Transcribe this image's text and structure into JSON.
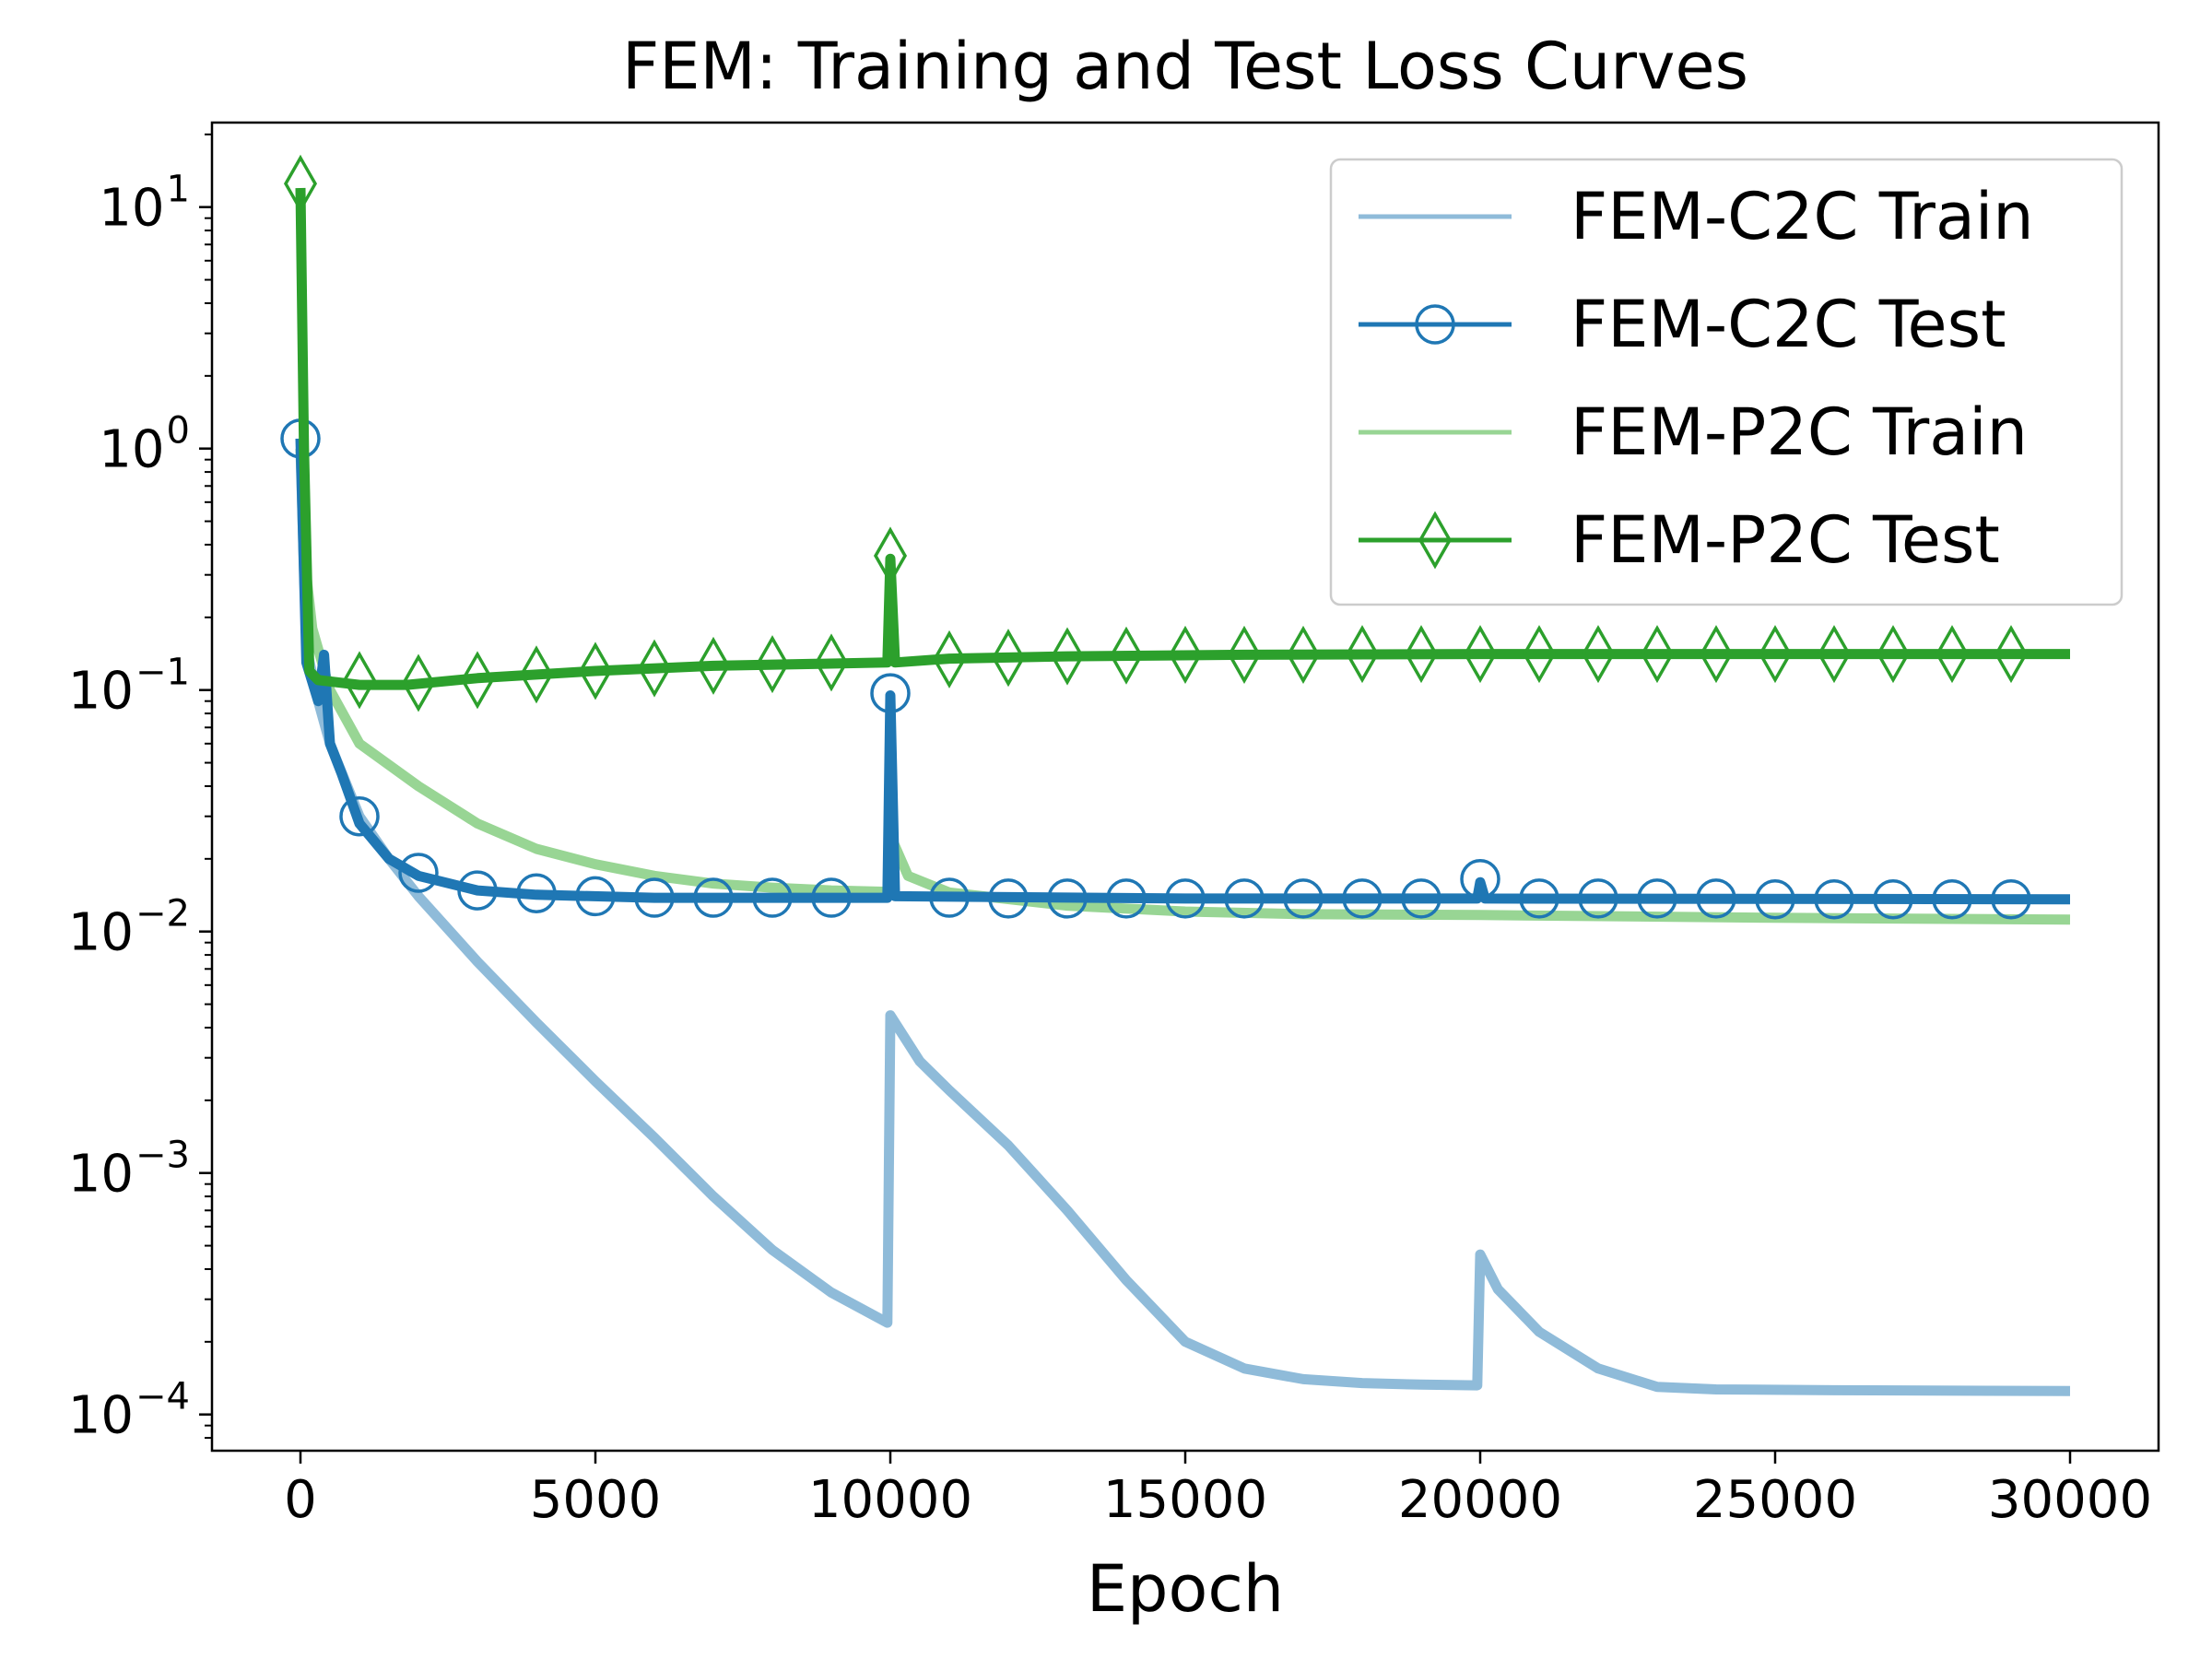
{
  "chart_data": {
    "type": "line",
    "title": "FEM: Training and Test Loss Curves",
    "xlabel": "Epoch",
    "ylabel": "",
    "xlim": [
      -1500,
      31500
    ],
    "ylim_log10": [
      -4.15,
      1.35
    ],
    "yscale": "log",
    "x_ticks": [
      0,
      5000,
      10000,
      15000,
      20000,
      25000,
      30000
    ],
    "x_tick_labels": [
      "0",
      "5000",
      "10000",
      "15000",
      "20000",
      "25000",
      "30000"
    ],
    "y_ticks_log10": [
      1,
      0,
      -1,
      -2,
      -3,
      -4
    ],
    "y_tick_labels": [
      {
        "base": "10",
        "exp": "1"
      },
      {
        "base": "10",
        "exp": "0"
      },
      {
        "base": "10",
        "exp": "−1"
      },
      {
        "base": "10",
        "exp": "−2"
      },
      {
        "base": "10",
        "exp": "−3"
      },
      {
        "base": "10",
        "exp": "−4"
      }
    ],
    "legend_position": "top-right",
    "series": [
      {
        "name": "FEM-C2C Train",
        "color": "#8fbbd9",
        "marker": "none",
        "points": [
          [
            0,
            1.0
          ],
          [
            100,
            0.15
          ],
          [
            300,
            0.09
          ],
          [
            500,
            0.06
          ],
          [
            1000,
            0.03
          ],
          [
            1500,
            0.02
          ],
          [
            2000,
            0.014
          ],
          [
            3000,
            0.0075
          ],
          [
            4000,
            0.0042
          ],
          [
            5000,
            0.0024
          ],
          [
            6000,
            0.0014
          ],
          [
            7000,
            0.0008
          ],
          [
            8000,
            0.00048
          ],
          [
            9000,
            0.00032
          ],
          [
            9950,
            0.00024
          ],
          [
            10000,
            0.0045
          ],
          [
            10500,
            0.0029
          ],
          [
            11000,
            0.0022
          ],
          [
            12000,
            0.0013
          ],
          [
            13000,
            0.0007
          ],
          [
            14000,
            0.00036
          ],
          [
            15000,
            0.0002
          ],
          [
            16000,
            0.000155
          ],
          [
            17000,
            0.00014
          ],
          [
            18000,
            0.000135
          ],
          [
            19000,
            0.000133
          ],
          [
            19950,
            0.000132
          ],
          [
            20000,
            0.00046
          ],
          [
            20300,
            0.00033
          ],
          [
            21000,
            0.00022
          ],
          [
            22000,
            0.000155
          ],
          [
            23000,
            0.00013
          ],
          [
            24000,
            0.000127
          ],
          [
            26000,
            0.000126
          ],
          [
            30000,
            0.000125
          ]
        ]
      },
      {
        "name": "FEM-C2C Test",
        "color": "#1f77b4",
        "marker": "circle",
        "points": [
          [
            0,
            1.1
          ],
          [
            100,
            0.13
          ],
          [
            300,
            0.09
          ],
          [
            400,
            0.14
          ],
          [
            500,
            0.06
          ],
          [
            700,
            0.045
          ],
          [
            1000,
            0.028
          ],
          [
            1500,
            0.02
          ],
          [
            2000,
            0.017
          ],
          [
            3000,
            0.0148
          ],
          [
            4000,
            0.0142
          ],
          [
            6000,
            0.0138
          ],
          [
            9950,
            0.0138
          ],
          [
            10000,
            0.095
          ],
          [
            10080,
            0.014
          ],
          [
            15000,
            0.0137
          ],
          [
            19950,
            0.0137
          ],
          [
            20000,
            0.016
          ],
          [
            20080,
            0.0137
          ],
          [
            30000,
            0.0136
          ]
        ],
        "marker_x": [
          0,
          1000,
          2000,
          3000,
          4000,
          5000,
          6000,
          7000,
          8000,
          9000,
          10000,
          11000,
          12000,
          13000,
          14000,
          15000,
          16000,
          17000,
          18000,
          19000,
          20000,
          21000,
          22000,
          23000,
          24000,
          25000,
          26000,
          27000,
          28000,
          29000
        ],
        "marker_y": [
          1.1,
          0.03,
          0.0175,
          0.0148,
          0.0144,
          0.014,
          0.0138,
          0.0138,
          0.0138,
          0.0138,
          0.097,
          0.0138,
          0.0137,
          0.0137,
          0.0137,
          0.0137,
          0.0137,
          0.0137,
          0.0137,
          0.0137,
          0.0165,
          0.0137,
          0.0137,
          0.0137,
          0.0137,
          0.0136,
          0.0136,
          0.0136,
          0.0136,
          0.0136
        ]
      },
      {
        "name": "FEM-P2C Train",
        "color": "#98d594",
        "marker": "none",
        "points": [
          [
            0,
            1.0
          ],
          [
            100,
            0.3
          ],
          [
            200,
            0.18
          ],
          [
            500,
            0.1
          ],
          [
            1000,
            0.06
          ],
          [
            2000,
            0.04
          ],
          [
            3000,
            0.028
          ],
          [
            4000,
            0.022
          ],
          [
            5000,
            0.019
          ],
          [
            6000,
            0.017
          ],
          [
            7000,
            0.0158
          ],
          [
            8000,
            0.0152
          ],
          [
            9000,
            0.0148
          ],
          [
            9950,
            0.0146
          ],
          [
            10000,
            0.025
          ],
          [
            10300,
            0.017
          ],
          [
            11000,
            0.0145
          ],
          [
            13000,
            0.0128
          ],
          [
            15000,
            0.0121
          ],
          [
            17000,
            0.0118
          ],
          [
            20000,
            0.0117
          ],
          [
            25000,
            0.0114
          ],
          [
            30000,
            0.0112
          ]
        ]
      },
      {
        "name": "FEM-P2C Test",
        "color": "#2ca02c",
        "marker": "diamond",
        "points": [
          [
            0,
            12.0
          ],
          [
            60,
            1.0
          ],
          [
            150,
            0.12
          ],
          [
            300,
            0.11
          ],
          [
            1000,
            0.105
          ],
          [
            1800,
            0.105
          ],
          [
            3000,
            0.112
          ],
          [
            5000,
            0.12
          ],
          [
            7000,
            0.126
          ],
          [
            9950,
            0.13
          ],
          [
            10000,
            0.35
          ],
          [
            10080,
            0.13
          ],
          [
            11000,
            0.135
          ],
          [
            13000,
            0.138
          ],
          [
            16000,
            0.14
          ],
          [
            20000,
            0.141
          ],
          [
            25000,
            0.141
          ],
          [
            30000,
            0.141
          ]
        ],
        "marker_x": [
          0,
          1000,
          2000,
          3000,
          4000,
          5000,
          6000,
          7000,
          8000,
          9000,
          10000,
          11000,
          12000,
          13000,
          14000,
          15000,
          16000,
          17000,
          18000,
          19000,
          20000,
          21000,
          22000,
          23000,
          24000,
          25000,
          26000,
          27000,
          28000,
          29000
        ],
        "marker_y": [
          12.5,
          0.11,
          0.107,
          0.11,
          0.116,
          0.12,
          0.123,
          0.126,
          0.128,
          0.13,
          0.36,
          0.134,
          0.136,
          0.138,
          0.139,
          0.14,
          0.14,
          0.14,
          0.141,
          0.141,
          0.141,
          0.141,
          0.141,
          0.141,
          0.141,
          0.141,
          0.141,
          0.141,
          0.141,
          0.141
        ]
      }
    ]
  }
}
